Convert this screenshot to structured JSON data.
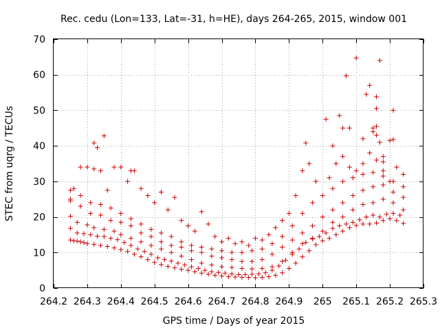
{
  "chart_data": {
    "type": "scatter",
    "title": "Rec. cedu (Lon=133, Lat=-31, h=HE), days 264-265, 2015, window 001",
    "xlabel": "GPS time / Days of year 2015",
    "ylabel": "STEC from uqrg / TECUs",
    "xlim": [
      264.2,
      265.3
    ],
    "ylim": [
      0,
      70
    ],
    "x_ticks": [
      264.2,
      264.3,
      264.4,
      264.5,
      264.6,
      264.7,
      264.8,
      264.9,
      265.0,
      265.1,
      265.2,
      265.3
    ],
    "x_tick_labels": [
      "264.2",
      "264.3",
      "264.4",
      "264.5",
      "264.6",
      "264.7",
      "264.8",
      "264.9",
      "265",
      "265.1",
      "265.2",
      "265.3"
    ],
    "y_ticks": [
      0,
      10,
      20,
      30,
      40,
      50,
      60,
      70
    ],
    "y_tick_labels": [
      "0",
      "10",
      "20",
      "30",
      "40",
      "50",
      "60",
      "70"
    ],
    "grid": true,
    "marker": "plus",
    "color": "#cc0000",
    "series": [
      {
        "name": "STEC",
        "points": [
          [
            264.25,
            13.5
          ],
          [
            264.26,
            13.3
          ],
          [
            264.27,
            13.2
          ],
          [
            264.28,
            13.0
          ],
          [
            264.29,
            12.8
          ],
          [
            264.3,
            12.5
          ],
          [
            264.32,
            12.3
          ],
          [
            264.34,
            12.0
          ],
          [
            264.36,
            11.7
          ],
          [
            264.38,
            11.3
          ],
          [
            264.4,
            10.8
          ],
          [
            264.42,
            10.3
          ],
          [
            264.44,
            9.5
          ],
          [
            264.46,
            8.8
          ],
          [
            264.48,
            8.0
          ],
          [
            264.5,
            7.2
          ],
          [
            264.52,
            6.6
          ],
          [
            264.54,
            6.1
          ],
          [
            264.56,
            5.7
          ],
          [
            264.58,
            5.3
          ],
          [
            264.6,
            5.0
          ],
          [
            264.62,
            4.6
          ],
          [
            264.64,
            4.2
          ],
          [
            264.66,
            3.9
          ],
          [
            264.68,
            3.6
          ],
          [
            264.7,
            3.4
          ],
          [
            264.72,
            3.2
          ],
          [
            264.74,
            3.1
          ],
          [
            264.76,
            3.0
          ],
          [
            264.78,
            3.0
          ],
          [
            264.8,
            2.9
          ],
          [
            264.82,
            3.0
          ],
          [
            264.84,
            3.2
          ],
          [
            264.86,
            3.6
          ],
          [
            264.88,
            4.3
          ],
          [
            264.9,
            5.5
          ],
          [
            264.92,
            7.0
          ],
          [
            264.94,
            8.8
          ],
          [
            264.96,
            10.5
          ],
          [
            264.98,
            12.2
          ],
          [
            265.0,
            13.3
          ],
          [
            265.02,
            14.0
          ],
          [
            265.04,
            15.0
          ],
          [
            265.06,
            16.0
          ],
          [
            265.08,
            17.0
          ],
          [
            265.1,
            17.6
          ],
          [
            265.12,
            18.0
          ],
          [
            265.14,
            18.0
          ],
          [
            265.16,
            18.3
          ],
          [
            265.18,
            19.0
          ],
          [
            265.2,
            19.5
          ],
          [
            265.22,
            19.0
          ],
          [
            265.24,
            18.2
          ],
          [
            264.25,
            16.8
          ],
          [
            264.27,
            15.5
          ],
          [
            264.29,
            15.3
          ],
          [
            264.31,
            15.0
          ],
          [
            264.33,
            14.6
          ],
          [
            264.35,
            14.5
          ],
          [
            264.37,
            14.0
          ],
          [
            264.39,
            13.6
          ],
          [
            264.41,
            12.8
          ],
          [
            264.43,
            12.0
          ],
          [
            264.45,
            11.0
          ],
          [
            264.47,
            10.3
          ],
          [
            264.49,
            9.5
          ],
          [
            264.51,
            8.5
          ],
          [
            264.53,
            8.0
          ],
          [
            264.55,
            7.6
          ],
          [
            264.57,
            7.0
          ],
          [
            264.59,
            6.5
          ],
          [
            264.61,
            6.0
          ],
          [
            264.63,
            5.5
          ],
          [
            264.65,
            5.0
          ],
          [
            264.67,
            4.6
          ],
          [
            264.69,
            4.4
          ],
          [
            264.71,
            4.2
          ],
          [
            264.73,
            4.0
          ],
          [
            264.75,
            3.8
          ],
          [
            264.77,
            3.8
          ],
          [
            264.79,
            3.9
          ],
          [
            264.81,
            4.0
          ],
          [
            264.83,
            4.3
          ],
          [
            264.85,
            5.0
          ],
          [
            264.87,
            6.2
          ],
          [
            264.89,
            7.8
          ],
          [
            264.91,
            9.5
          ],
          [
            264.93,
            11.0
          ],
          [
            264.95,
            12.8
          ],
          [
            264.97,
            13.8
          ],
          [
            264.99,
            14.5
          ],
          [
            265.01,
            15.5
          ],
          [
            265.03,
            16.8
          ],
          [
            265.05,
            17.5
          ],
          [
            265.07,
            18.0
          ],
          [
            265.09,
            18.5
          ],
          [
            265.11,
            19.2
          ],
          [
            265.13,
            20.0
          ],
          [
            265.15,
            20.5
          ],
          [
            265.17,
            20.0
          ],
          [
            265.19,
            20.8
          ],
          [
            265.21,
            21.0
          ],
          [
            265.23,
            20.5
          ],
          [
            264.25,
            20.2
          ],
          [
            264.27,
            18.5
          ],
          [
            264.3,
            17.8
          ],
          [
            264.32,
            17.0
          ],
          [
            264.35,
            16.5
          ],
          [
            264.38,
            16.0
          ],
          [
            264.4,
            15.0
          ],
          [
            264.43,
            14.0
          ],
          [
            264.46,
            13.0
          ],
          [
            264.49,
            12.0
          ],
          [
            264.52,
            11.0
          ],
          [
            264.55,
            10.0
          ],
          [
            264.58,
            9.0
          ],
          [
            264.61,
            8.0
          ],
          [
            264.64,
            7.0
          ],
          [
            264.67,
            6.5
          ],
          [
            264.7,
            6.0
          ],
          [
            264.73,
            5.8
          ],
          [
            264.76,
            5.5
          ],
          [
            264.79,
            5.4
          ],
          [
            264.82,
            5.5
          ],
          [
            264.85,
            6.0
          ],
          [
            264.88,
            7.5
          ],
          [
            264.91,
            10.0
          ],
          [
            264.94,
            12.5
          ],
          [
            264.97,
            14.0
          ],
          [
            265.0,
            16.0
          ],
          [
            265.03,
            18.5
          ],
          [
            265.06,
            20.0
          ],
          [
            265.09,
            22.0
          ],
          [
            265.12,
            23.5
          ],
          [
            265.15,
            24.0
          ],
          [
            265.18,
            25.0
          ],
          [
            265.21,
            24.0
          ],
          [
            265.24,
            22.0
          ],
          [
            264.25,
            25.0
          ],
          [
            264.28,
            23.0
          ],
          [
            264.31,
            21.0
          ],
          [
            264.34,
            20.5
          ],
          [
            264.37,
            19.0
          ],
          [
            264.4,
            18.5
          ],
          [
            264.43,
            17.5
          ],
          [
            264.46,
            15.5
          ],
          [
            264.49,
            14.5
          ],
          [
            264.52,
            13.0
          ],
          [
            264.55,
            12.0
          ],
          [
            264.58,
            11.5
          ],
          [
            264.61,
            10.5
          ],
          [
            264.64,
            10.0
          ],
          [
            264.67,
            9.0
          ],
          [
            264.7,
            8.5
          ],
          [
            264.73,
            8.0
          ],
          [
            264.76,
            7.5
          ],
          [
            264.79,
            7.5
          ],
          [
            264.82,
            8.0
          ],
          [
            264.85,
            9.5
          ],
          [
            264.88,
            11.5
          ],
          [
            264.91,
            13.5
          ],
          [
            264.94,
            15.5
          ],
          [
            264.97,
            17.5
          ],
          [
            265.0,
            20.0
          ],
          [
            265.03,
            22.0
          ],
          [
            265.06,
            24.0
          ],
          [
            265.09,
            26.0
          ],
          [
            265.12,
            27.5
          ],
          [
            265.15,
            28.5
          ],
          [
            265.18,
            29.0
          ],
          [
            265.21,
            27.0
          ],
          [
            265.24,
            25.5
          ],
          [
            264.25,
            27.5
          ],
          [
            264.28,
            26.0
          ],
          [
            264.31,
            24.0
          ],
          [
            264.34,
            23.5
          ],
          [
            264.37,
            22.5
          ],
          [
            264.4,
            21.0
          ],
          [
            264.43,
            19.5
          ],
          [
            264.46,
            18.0
          ],
          [
            264.49,
            16.5
          ],
          [
            264.52,
            15.5
          ],
          [
            264.55,
            14.5
          ],
          [
            264.58,
            13.0
          ],
          [
            264.61,
            12.0
          ],
          [
            264.64,
            11.5
          ],
          [
            264.67,
            11.0
          ],
          [
            264.7,
            10.5
          ],
          [
            264.73,
            10.0
          ],
          [
            264.76,
            10.0
          ],
          [
            264.79,
            10.5
          ],
          [
            264.82,
            11.0
          ],
          [
            264.85,
            12.5
          ],
          [
            264.88,
            14.5
          ],
          [
            264.91,
            17.5
          ],
          [
            264.94,
            21.0
          ],
          [
            264.97,
            24.0
          ],
          [
            265.0,
            26.0
          ],
          [
            265.03,
            28.0
          ],
          [
            265.06,
            30.0
          ],
          [
            265.09,
            31.0
          ],
          [
            265.12,
            32.0
          ],
          [
            265.15,
            32.5
          ],
          [
            265.18,
            31.5
          ],
          [
            265.21,
            30.0
          ],
          [
            265.24,
            28.5
          ],
          [
            264.25,
            24.5
          ],
          [
            264.26,
            28.0
          ],
          [
            264.28,
            34.0
          ],
          [
            264.3,
            34.0
          ],
          [
            264.32,
            33.5
          ],
          [
            264.34,
            33.0
          ],
          [
            264.36,
            27.5
          ],
          [
            264.38,
            34.0
          ],
          [
            264.4,
            34.0
          ],
          [
            264.42,
            30.0
          ],
          [
            264.44,
            33.0
          ],
          [
            264.46,
            28.0
          ],
          [
            264.48,
            26.0
          ],
          [
            264.5,
            24.0
          ],
          [
            264.52,
            27.0
          ],
          [
            264.54,
            22.0
          ],
          [
            264.56,
            25.5
          ],
          [
            264.58,
            19.0
          ],
          [
            264.6,
            17.5
          ],
          [
            264.62,
            16.0
          ],
          [
            264.64,
            21.5
          ],
          [
            264.66,
            18.0
          ],
          [
            264.68,
            14.5
          ],
          [
            264.7,
            13.0
          ],
          [
            264.72,
            14.0
          ],
          [
            264.74,
            12.5
          ],
          [
            264.76,
            13.0
          ],
          [
            264.78,
            12.0
          ],
          [
            264.8,
            14.0
          ],
          [
            264.82,
            13.5
          ],
          [
            264.84,
            15.0
          ],
          [
            264.86,
            17.0
          ],
          [
            264.88,
            19.0
          ],
          [
            264.9,
            21.0
          ],
          [
            264.92,
            26.0
          ],
          [
            264.94,
            33.0
          ],
          [
            264.96,
            35.0
          ],
          [
            264.98,
            30.0
          ],
          [
            265.02,
            31.0
          ],
          [
            265.04,
            35.0
          ],
          [
            265.06,
            37.0
          ],
          [
            265.08,
            34.0
          ],
          [
            265.1,
            33.0
          ],
          [
            265.12,
            35.0
          ],
          [
            265.14,
            38.0
          ],
          [
            265.16,
            36.0
          ],
          [
            265.18,
            33.0
          ],
          [
            265.2,
            30.0
          ],
          [
            265.22,
            34.0
          ],
          [
            265.24,
            32.0
          ],
          [
            264.32,
            40.8
          ],
          [
            264.33,
            39.5
          ],
          [
            264.35,
            42.8
          ],
          [
            264.43,
            33.0
          ],
          [
            264.95,
            40.8
          ],
          [
            265.01,
            47.5
          ],
          [
            265.03,
            40.0
          ],
          [
            265.05,
            48.5
          ],
          [
            265.06,
            45.0
          ],
          [
            265.07,
            59.7
          ],
          [
            265.08,
            45.0
          ],
          [
            265.1,
            64.7
          ],
          [
            265.12,
            42.0
          ],
          [
            265.13,
            54.5
          ],
          [
            265.14,
            57.0
          ],
          [
            265.15,
            45.0
          ],
          [
            265.15,
            44.0
          ],
          [
            265.16,
            53.8
          ],
          [
            265.16,
            50.5
          ],
          [
            265.17,
            64.0
          ],
          [
            265.16,
            45.5
          ],
          [
            265.16,
            43.0
          ],
          [
            265.17,
            41.0
          ],
          [
            265.18,
            37.0
          ],
          [
            265.18,
            35.5
          ],
          [
            265.2,
            41.5
          ],
          [
            265.21,
            50.0
          ],
          [
            265.21,
            41.8
          ]
        ]
      }
    ]
  }
}
